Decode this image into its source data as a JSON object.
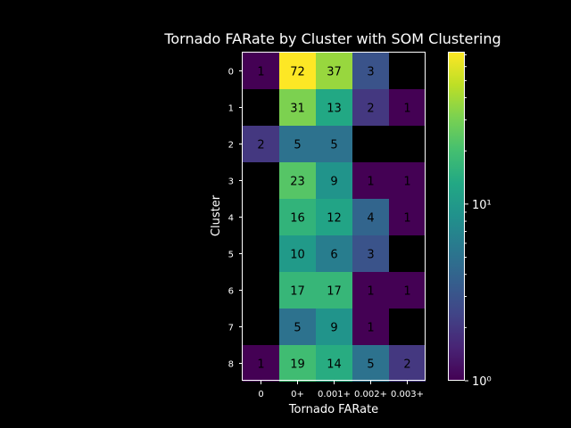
{
  "chart_data": {
    "type": "heatmap",
    "title": "Tornado FARate by Cluster with SOM Clustering",
    "xlabel": "Tornado FARate",
    "ylabel": "Cluster",
    "x_categories": [
      "0",
      "0+",
      "0.001+",
      "0.002+",
      "0.003+"
    ],
    "y_categories": [
      "0",
      "1",
      "2",
      "3",
      "4",
      "5",
      "6",
      "7",
      "8"
    ],
    "values": [
      [
        1,
        72,
        37,
        3,
        null
      ],
      [
        null,
        31,
        13,
        2,
        1
      ],
      [
        2,
        5,
        5,
        null,
        null
      ],
      [
        null,
        23,
        9,
        1,
        1
      ],
      [
        null,
        16,
        12,
        4,
        1
      ],
      [
        null,
        10,
        6,
        3,
        null
      ],
      [
        null,
        17,
        17,
        1,
        1
      ],
      [
        null,
        5,
        9,
        1,
        null
      ],
      [
        1,
        19,
        14,
        5,
        2
      ]
    ],
    "color_scale": "viridis",
    "color_scale_type": "log",
    "colorbar_range": [
      1,
      72
    ],
    "colorbar_major_ticks": [
      {
        "value": 1,
        "label": "10⁰"
      },
      {
        "value": 10,
        "label": "10¹"
      }
    ],
    "missing_color": "#000000",
    "text_color": "#000000",
    "foreground_color": "#ffffff",
    "background_color": "#000000"
  }
}
